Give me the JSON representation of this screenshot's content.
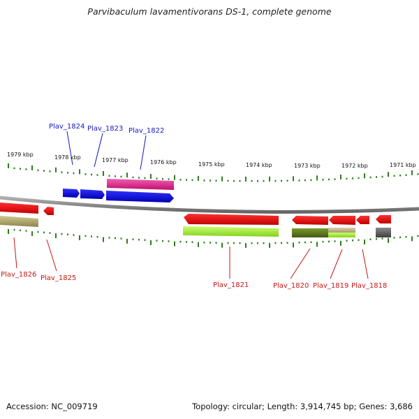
{
  "title": "Parvibaculum lavamentivorans DS-1, complete genome",
  "footer": {
    "accession": "Accession: NC_009719",
    "summary": "Topology: circular; Length: 3,914,745 bp; Genes: 3,686"
  },
  "colors": {
    "backbone": "#8a8a8a",
    "ticks": "#2e7d1e",
    "label_forward": "#1515c8",
    "label_reverse": "#c81414",
    "gene_blue": "#1010e0",
    "gene_magenta": "#e0308c",
    "gene_red": "#f01818",
    "gene_khaki": "#b5ad72",
    "gene_lime": "#aaee40",
    "gene_olive": "#5d7a20",
    "gene_tan": "#c8b890",
    "gene_gray": "#606060"
  },
  "scale": {
    "unit": "kbp",
    "tick_labels": [
      "1979 kbp",
      "1978 kbp",
      "1977 kbp",
      "1976 kbp",
      "1975 kbp",
      "1974 kbp",
      "1973 kbp",
      "1972 kbp",
      "1971 kbp"
    ]
  },
  "genes": [
    {
      "id": "Plav_1824",
      "strand": "+"
    },
    {
      "id": "Plav_1823",
      "strand": "+"
    },
    {
      "id": "Plav_1822",
      "strand": "+"
    },
    {
      "id": "Plav_1826",
      "strand": "-"
    },
    {
      "id": "Plav_1825",
      "strand": "-"
    },
    {
      "id": "Plav_1821",
      "strand": "-"
    },
    {
      "id": "Plav_1820",
      "strand": "-"
    },
    {
      "id": "Plav_1819",
      "strand": "-"
    },
    {
      "id": "Plav_1818",
      "strand": "-"
    }
  ]
}
